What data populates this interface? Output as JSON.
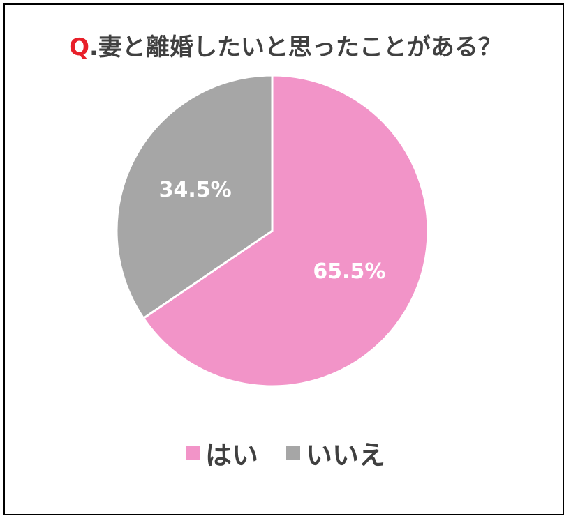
{
  "title": {
    "prefix": "Q",
    "text": ".妻と離婚したいと思ったことがある？"
  },
  "chart_data": {
    "type": "pie",
    "title": "Q.妻と離婚したいと思ったことがある？",
    "categories": [
      "はい",
      "いいえ"
    ],
    "values": [
      65.5,
      34.5
    ],
    "labels": [
      "65.5%",
      "34.5%"
    ],
    "colors": [
      "#f294c8",
      "#a6a6a6"
    ],
    "legend_position": "bottom",
    "start_angle_deg": 0,
    "direction": "clockwise"
  },
  "colors": {
    "accent_q": "#e8202a",
    "text": "#404040",
    "border": "#000000"
  },
  "legend": [
    {
      "label": "はい",
      "color": "#f294c8"
    },
    {
      "label": "いいえ",
      "color": "#a6a6a6"
    }
  ]
}
